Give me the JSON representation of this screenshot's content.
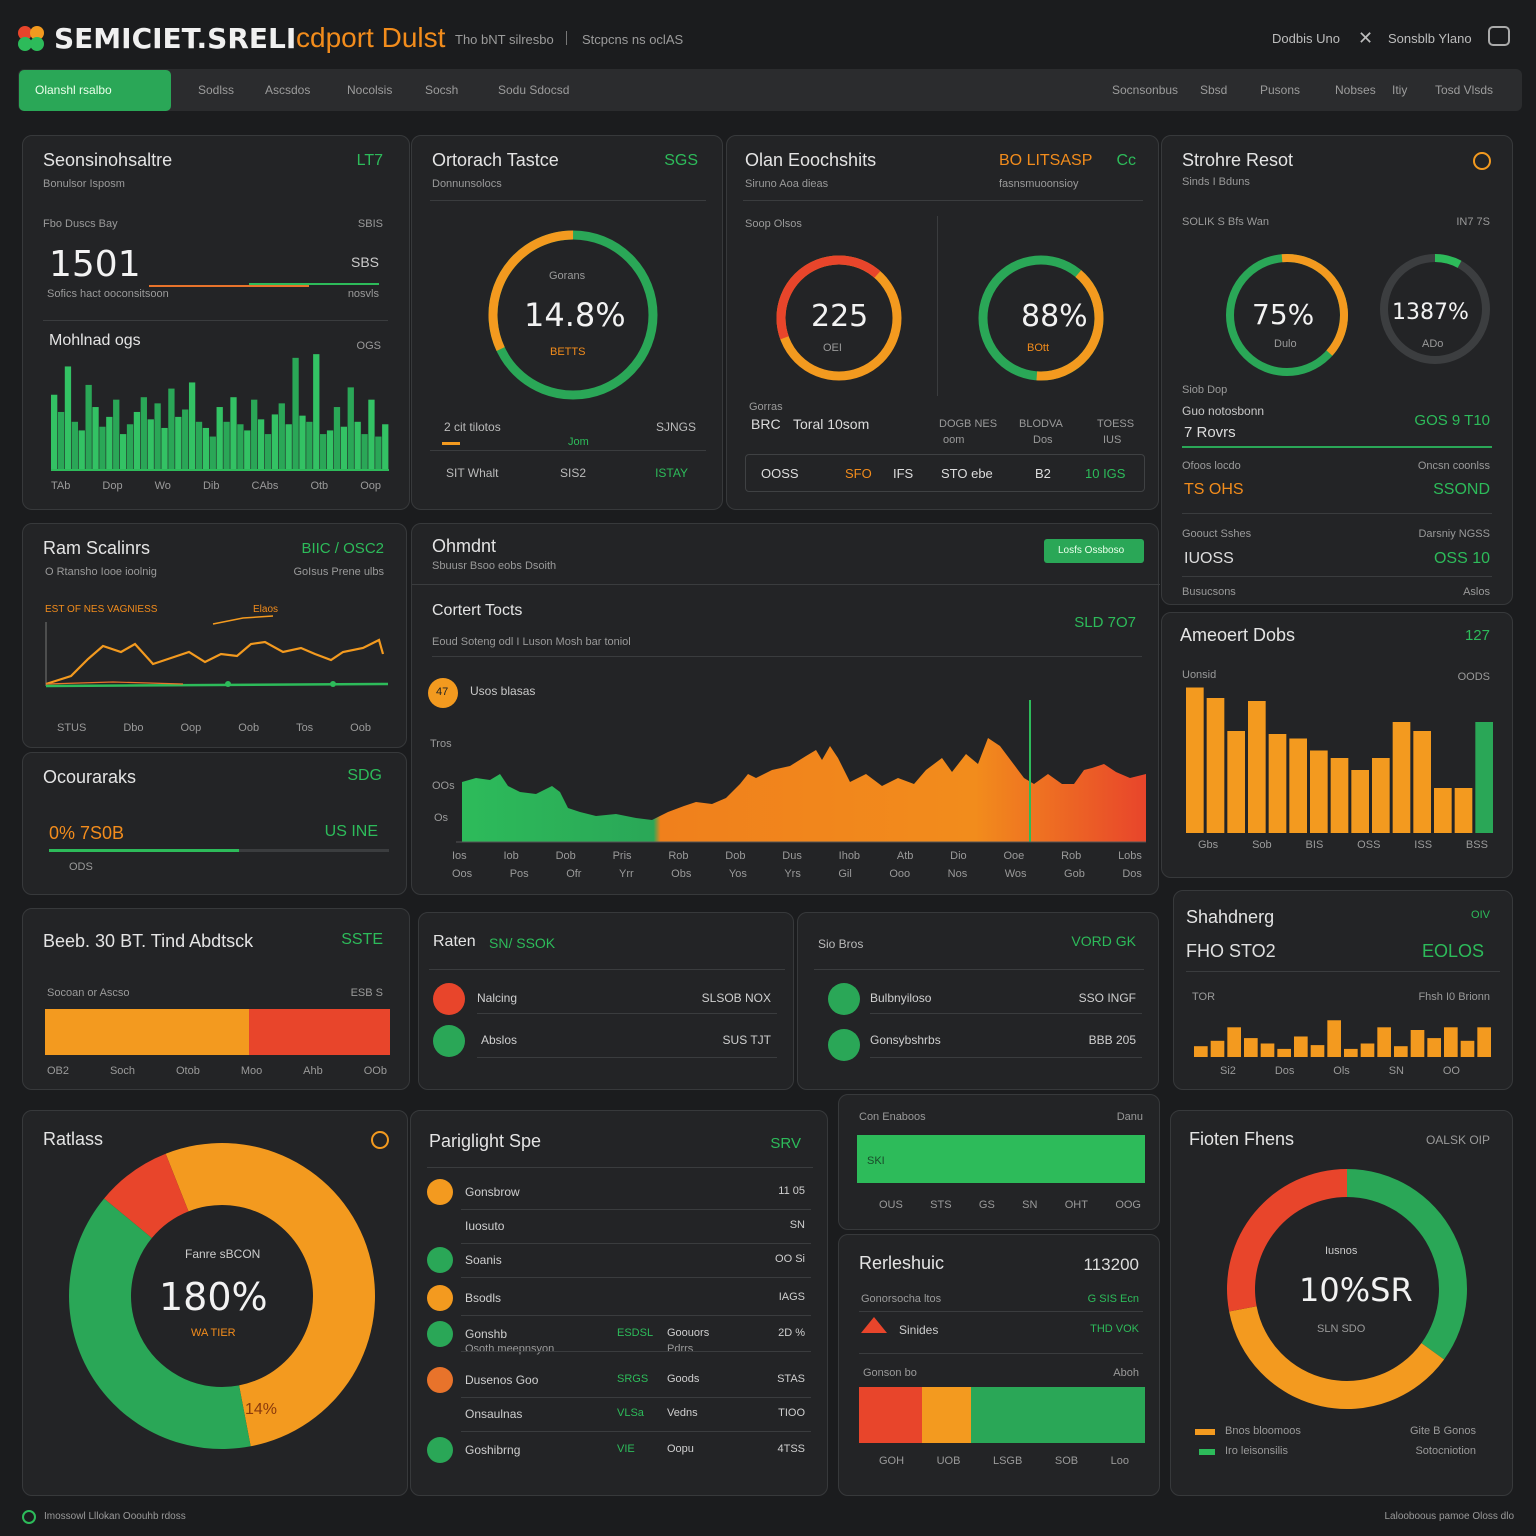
{
  "app": {
    "title": "SEMICIET.SRELI",
    "subtitle": "cdport Dulst",
    "crumb1": "Tho bNT silresbo",
    "crumb2": "Stcpcns ns oclAS",
    "top_right": [
      "Dodbis Uno",
      "Sonsblb Ylano"
    ]
  },
  "nav": {
    "active": "Olanshl rsalbo",
    "tabs": [
      "Sodlss",
      "Ascsdos",
      "Nocolsis",
      "Socsh",
      "Sodu Sdocsd"
    ],
    "right": [
      "Socnsonbus",
      "Sbsd",
      "Pusons",
      "Nobses",
      "Itiy",
      "Tosd Vlsds"
    ]
  },
  "p1": {
    "title": "Seonsinohsaltre",
    "badge": "LT7",
    "sub": "Bonulsor Isposm",
    "row": "Fbo Duscs Bay",
    "row_v": "SBIS",
    "value": "1501",
    "value_r": "SBS",
    "value_r2": "nosvls",
    "cap": "Sofics hact ooconsitsoon",
    "title2": "Mohlnad ogs",
    "badge2": "OGS",
    "x": [
      "TAb",
      "Dop",
      "Wo",
      "Dib",
      "CAbs",
      "Otb",
      "Oop"
    ],
    "bars": [
      0.62,
      0.48,
      0.85,
      0.4,
      0.33,
      0.7,
      0.52,
      0.36,
      0.44,
      0.58,
      0.3,
      0.38,
      0.48,
      0.6,
      0.42,
      0.55,
      0.35,
      0.67,
      0.44,
      0.5,
      0.72,
      0.4,
      0.35,
      0.28,
      0.52,
      0.4,
      0.6,
      0.38,
      0.33,
      0.58,
      0.42,
      0.3,
      0.46,
      0.55,
      0.38,
      0.92,
      0.45,
      0.4,
      0.95,
      0.3,
      0.33,
      0.52,
      0.36,
      0.68,
      0.4,
      0.3,
      0.58,
      0.28,
      0.38
    ]
  },
  "p2": {
    "title": "Ortorach Tastce",
    "badge": "SGS",
    "sub": "Donnunsolocs",
    "gauge_label": "Gorans",
    "gauge_value": "14.8%",
    "gauge_sub": "BETTS",
    "r1a": "2 cit tilotos",
    "r1b": "Jom",
    "r1c": "SJNGS",
    "r2a": "SIT Whalt",
    "r2b": "SIS2",
    "r2c": "ISTAY",
    "gauge": 0.68
  },
  "p3": {
    "title": "Olan Eoochshits",
    "badge": "BO LITSASP",
    "badge2": "Cc",
    "sub": "Siruno Aoa dieas",
    "sub2": "fasnsmuoonsioy",
    "row": "Soop Olsos",
    "g1": "225",
    "g1s": "OEI",
    "g2": "88%",
    "g2s": "BOtt",
    "c1": "Gorras",
    "c2": "BRC",
    "c3": "Toral 10som",
    "c4": "DOGB NES",
    "c5": "BLODVA",
    "c6": "TOESS",
    "c7": "oom",
    "c8": "Dos",
    "c9": "IUS",
    "b1": "OOSS",
    "b2": "SFO",
    "b3": "IFS",
    "b4": "STO ebe",
    "b5": "B2",
    "b6": "10 IGS",
    "g1_val": 0.75,
    "g2_val": 0.88
  },
  "p4": {
    "title": "Strohre Resot",
    "sub": "Sinds I Bduns",
    "row": "SOLIK S Bfs Wan",
    "row_v": "IN7 7S",
    "g1": "75%",
    "g1s": "Dulo",
    "g2": "1387%",
    "g2s": "ADo",
    "l1": "Siob Dop",
    "l2": "Guo notosbonn",
    "l3": "7 Rovrs",
    "v3": "GOS 9 T10",
    "l4": "Ofoos locdo",
    "l4r": "Oncsn coonlss",
    "v4": "TS OHS",
    "v4r": "SSOND",
    "l5": "Goouct Sshes",
    "l5r": "Darsniy NGSS",
    "v5": "IUOSS",
    "v5r": "OSS 10",
    "l6": "Busucsons",
    "l6r": "Aslos",
    "g1_val": 0.75,
    "g2_val": 0.08
  },
  "p5": {
    "title": "Ram Scalinrs",
    "badge": "BIIC / OSC2",
    "sub": "O Rtansho Iooe ioolnig",
    "sub2": "GoIsus Prene ulbs",
    "legend": "EST OF NES VAGNIESS",
    "legend2": "Elaos",
    "x": [
      "STUS",
      "Dbo",
      "Oop",
      "Oob",
      "Tos",
      "Oob"
    ]
  },
  "p6": {
    "title": "Ohmdnt",
    "sub": "Sbuusr Bsoo eobs Dsoith",
    "button": "Losfs Ossboso",
    "title2": "Cortert Tocts",
    "badge2": "SLD 7O7",
    "sub2": "Eoud Soteng odl I Luson Mosh bar toniol",
    "marker": "47",
    "marker_label": "Usos blasas",
    "y": [
      "Tros",
      "OOs",
      "Os"
    ],
    "x1": [
      "Ios",
      "Iob",
      "Dob",
      "Pris",
      "Rob",
      "Dob",
      "Dus",
      "Ihob",
      "Atb",
      "Dio",
      "Ooe",
      "Rob",
      "Lobs"
    ],
    "x2": [
      "Oos",
      "Pos",
      "Ofr",
      "Yrr",
      "Obs",
      "Yos",
      "Yrs",
      "Gil",
      "Ooo",
      "Nos",
      "Wos",
      "Gob",
      "Dos"
    ]
  },
  "p7": {
    "title": "Ameoert Dobs",
    "badge": "127",
    "sub": "Uonsid",
    "sub2": "OODS",
    "x": [
      "Gbs",
      "Sob",
      "BIS",
      "OSS",
      "ISS",
      "BSS"
    ],
    "bars": [
      0.97,
      0.9,
      0.68,
      0.88,
      0.66,
      0.63,
      0.55,
      0.5,
      0.42,
      0.5,
      0.74,
      0.68,
      0.3,
      0.3,
      0.74
    ],
    "bar_colors": [
      "o",
      "o",
      "o",
      "o",
      "o",
      "o",
      "o",
      "o",
      "o",
      "o",
      "o",
      "o",
      "o",
      "o",
      "g"
    ]
  },
  "p8": {
    "title": "Ocouraraks",
    "badge": "SDG",
    "value": "0% 7S0B",
    "value_r": "US INE",
    "cap": "ODS"
  },
  "p9": {
    "title": "Beeb. 30 BT. Tind Abdtsck",
    "badge": "SSTE",
    "sub": "Socoan or Ascso",
    "sub_r": "ESB S",
    "x": [
      "OB2",
      "Soch",
      "Otob",
      "Moo",
      "Ahb",
      "OOb"
    ],
    "split": 0.59
  },
  "p10": {
    "title": "Raten",
    "title_hl": "SN/ SSOK",
    "rows": [
      {
        "label": "Nalcing",
        "value": "SLSOB NOX",
        "color": "#e8452b"
      },
      {
        "label": "Abslos",
        "value": "SUS TJT",
        "color": "#2dbb5a"
      }
    ]
  },
  "p11": {
    "title": "Sio Bros",
    "badge": "VORD GK",
    "rows": [
      {
        "label": "Bulbnyiloso",
        "value": "SSO INGF"
      },
      {
        "label": "Gonsybshrbs",
        "value": "BBB 205"
      }
    ]
  },
  "p12": {
    "title": "Shahdnerg",
    "badge": "OIV",
    "value": "FHO STO2",
    "value_r": "EOLOS",
    "sub": "TOR",
    "sub_r": "Fhsh I0 Brionn",
    "x": [
      "Si2",
      "Dos",
      "Ols",
      "SN",
      "OO"
    ],
    "bars": [
      0.2,
      0.3,
      0.55,
      0.35,
      0.25,
      0.15,
      0.38,
      0.22,
      0.68,
      0.15,
      0.25,
      0.55,
      0.2,
      0.5,
      0.35,
      0.55,
      0.3,
      0.55
    ]
  },
  "p13": {
    "title": "Ratlass",
    "donut_label": "Fanre sBCON",
    "value": "180%",
    "value_sub": "WA TIER",
    "slice_label": "14%",
    "slices": [
      {
        "pct": 0.53,
        "color": "#f39a1f"
      },
      {
        "pct": 0.39,
        "color": "#2aa757"
      },
      {
        "pct": 0.08,
        "color": "#e8452b"
      }
    ]
  },
  "p14": {
    "title": "Pariglight Spe",
    "badge": "SRV",
    "rows": [
      {
        "label": "Gonsbrow",
        "value": "11 05",
        "icon": "o"
      },
      {
        "label": "Iuosuto",
        "value": "SN",
        "icon": ""
      },
      {
        "label": "Soanis",
        "value": "OO Si",
        "icon": "g"
      },
      {
        "label": "Bsodls",
        "value": "IAGS",
        "icon": "o"
      },
      {
        "label": "Gonshb",
        "sub": "Osoth meepnsyon",
        "mid": "ESDSL",
        "mid2": "Goouors",
        "mid2s": "Pdrrs",
        "value": "2D %",
        "icon": "g"
      },
      {
        "label": "Dusenos Goo",
        "mid": "SRGS",
        "mid2": "Goods",
        "value": "STAS",
        "icon": "og"
      },
      {
        "label": "Onsaulnas",
        "mid": "VLSa",
        "mid2": "Vedns",
        "value": "TIOO",
        "icon": ""
      },
      {
        "label": "Goshibrng",
        "mid": "VIE",
        "mid2": "Oopu",
        "value": "4TSS",
        "icon": "g"
      }
    ]
  },
  "p15": {
    "title": "Con Enaboos",
    "badge": "Danu",
    "bar_label": "SKI",
    "x": [
      "OUS",
      "STS",
      "GS",
      "SN",
      "OHT",
      "OOG"
    ],
    "fill": 1.0
  },
  "p16": {
    "title": "Rerleshuic",
    "badge": "113200",
    "row1": "Gonorsocha ltos",
    "row1_r": "G SIS Ecn",
    "row2": "Sinides",
    "row2_r": "THD VOK",
    "row3": "Gonson bo",
    "row3_r": "Aboh",
    "x": [
      "GOH",
      "UOB",
      "LSGB",
      "SOB",
      "Loo"
    ],
    "segs": [
      {
        "w": 0.22,
        "color": "#e8452b"
      },
      {
        "w": 0.17,
        "color": "#f39a1f"
      },
      {
        "w": 0.61,
        "color": "#2aa757"
      }
    ]
  },
  "p17": {
    "title": "Fioten Fhens",
    "badge": "OALSK OIP",
    "label": "Iusnos",
    "value": "10%SR",
    "value_sub": "SLN SDO",
    "legend": [
      {
        "label": "Bnos bloomoos",
        "color": "#f39a1f"
      },
      {
        "label": "Iro leisonsilis",
        "color": "#2dbb5a"
      }
    ],
    "legend_r": "Gite B Gonos",
    "legend_r2": "Sotocniotion",
    "slices": [
      {
        "pct": 0.35,
        "color": "#2aa757"
      },
      {
        "pct": 0.37,
        "color": "#f39a1f"
      },
      {
        "pct": 0.28,
        "color": "#e8452b"
      }
    ]
  },
  "footer": {
    "left": "Imossowl Lllokan Ooouhb rdoss",
    "right": "Lalooboous pamoe Oloss dlo"
  }
}
